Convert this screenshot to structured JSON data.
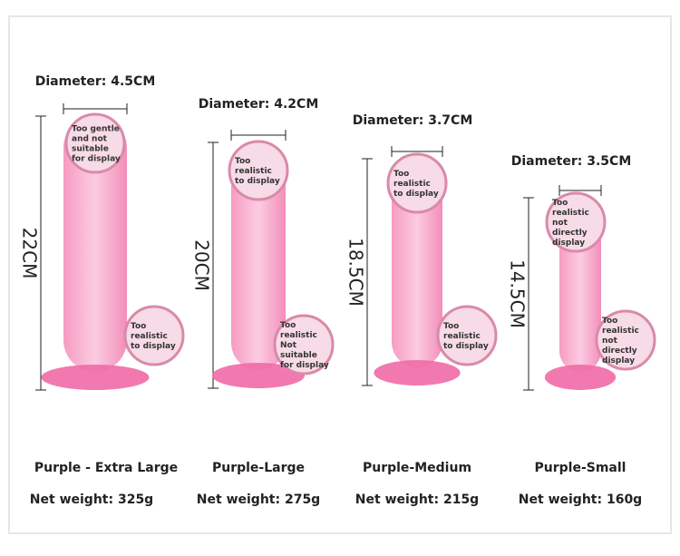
{
  "products": [
    {
      "diameter": "Diameter: 4.5CM",
      "height": "22CM",
      "notes": [
        "Too gentle and not suitable for display",
        "Too realistic to display"
      ],
      "name": "Purple - Extra Large",
      "weight": "Net weight: 325g"
    },
    {
      "diameter": "Diameter: 4.2CM",
      "height": "20CM",
      "notes": [
        "Too realistic to display",
        "Too realistic Not suitable for display"
      ],
      "name": "Purple-Large",
      "weight": "Net weight: 275g"
    },
    {
      "diameter": "Diameter: 3.7CM",
      "height": "18.5CM",
      "notes": [
        "Too realistic to display",
        "Too realistic to display"
      ],
      "name": "Purple-Medium",
      "weight": "Net weight: 215g"
    },
    {
      "diameter": "Diameter: 3.5CM",
      "height": "14.5CM",
      "notes": [
        "Too realistic not directly display",
        "Too realistic not directly display"
      ],
      "name": "Purple-Small",
      "weight": "Net weight: 160g"
    }
  ]
}
